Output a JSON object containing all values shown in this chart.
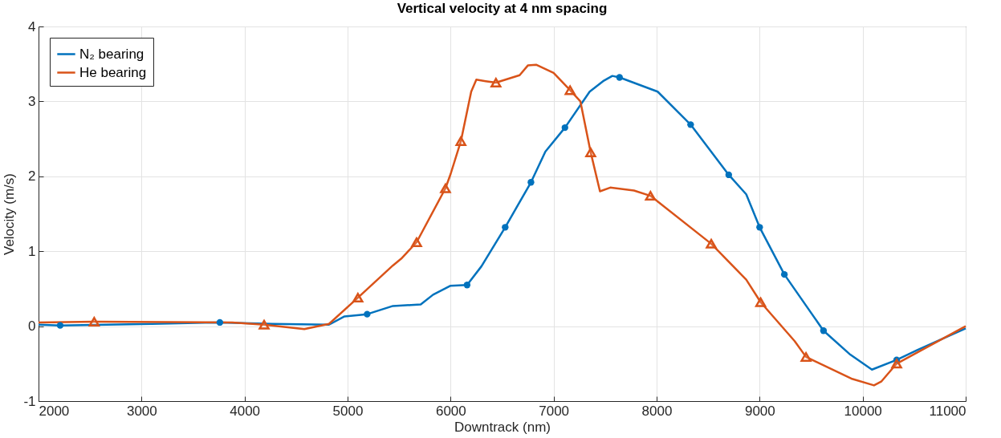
{
  "chart_data": {
    "type": "line",
    "title": "Vertical velocity at 4 nm spacing",
    "xlabel": "Downtrack (nm)",
    "ylabel": "Velocity (m/s)",
    "xlim": [
      2000,
      11000
    ],
    "xticks": [
      2000,
      3000,
      4000,
      5000,
      6000,
      7000,
      8000,
      9000,
      10000,
      11000
    ],
    "ylim": [
      -1,
      4
    ],
    "yticks": [
      -1,
      0,
      1,
      2,
      3,
      4
    ],
    "grid": true,
    "legend": "top left",
    "line_style": "solid",
    "series": [
      {
        "name": "N₂ bearing",
        "color": "#0072bd",
        "x": [
          2000,
          2210,
          3100,
          3760,
          4270,
          4820,
          4970,
          5190,
          5440,
          5710,
          5830,
          6000,
          6160,
          6300,
          6530,
          6780,
          6920,
          7110,
          7350,
          7480,
          7570,
          7640,
          8010,
          8330,
          8700,
          8870,
          9000,
          9240,
          9620,
          9880,
          10090,
          10330,
          10530,
          11000
        ],
        "values": [
          0.02,
          0.01,
          0.03,
          0.05,
          0.03,
          0.02,
          0.13,
          0.16,
          0.27,
          0.29,
          0.42,
          0.54,
          0.55,
          0.8,
          1.32,
          1.92,
          2.33,
          2.65,
          3.13,
          3.27,
          3.34,
          3.32,
          3.13,
          2.69,
          2.02,
          1.76,
          1.32,
          0.69,
          -0.06,
          -0.38,
          -0.58,
          -0.45,
          -0.32,
          -0.03
        ]
      },
      {
        "name": "He bearing",
        "color": "#d95319",
        "x": [
          2000,
          2540,
          3880,
          4190,
          4580,
          4820,
          5100,
          5440,
          5520,
          5670,
          5950,
          6000,
          6100,
          6200,
          6250,
          6340,
          6440,
          6670,
          6750,
          6830,
          7000,
          7160,
          7260,
          7360,
          7450,
          7550,
          7780,
          7940,
          8530,
          8870,
          9010,
          9340,
          9450,
          9890,
          10110,
          10180,
          10330,
          10530,
          11000
        ],
        "values": [
          0.05,
          0.06,
          0.05,
          0.02,
          -0.04,
          0.03,
          0.38,
          0.81,
          0.9,
          1.12,
          1.84,
          2.03,
          2.47,
          3.13,
          3.29,
          3.27,
          3.25,
          3.35,
          3.48,
          3.49,
          3.38,
          3.15,
          3.0,
          2.32,
          1.8,
          1.85,
          1.81,
          1.74,
          1.1,
          0.62,
          0.32,
          -0.2,
          -0.41,
          -0.7,
          -0.79,
          -0.74,
          -0.5,
          -0.35,
          0.0
        ]
      },
      {
        "type": "scatter",
        "marker": "circle",
        "color": "#0072bd",
        "x": [
          2210,
          3760,
          5190,
          6160,
          6530,
          6780,
          7110,
          7640,
          8330,
          8700,
          9000,
          9240,
          9620,
          10330
        ],
        "values": [
          0.01,
          0.05,
          0.16,
          0.55,
          1.32,
          1.92,
          2.65,
          3.32,
          2.69,
          2.02,
          1.32,
          0.69,
          -0.06,
          -0.45
        ]
      },
      {
        "type": "scatter",
        "marker": "triangle",
        "color": "#d95319",
        "x": [
          2540,
          4190,
          5100,
          5670,
          5950,
          6100,
          6440,
          7160,
          7360,
          7940,
          8530,
          9010,
          9450,
          10330
        ],
        "values": [
          0.06,
          0.02,
          0.38,
          1.12,
          1.84,
          2.47,
          3.25,
          3.15,
          2.32,
          1.74,
          1.1,
          0.32,
          -0.41,
          -0.5
        ]
      }
    ]
  }
}
